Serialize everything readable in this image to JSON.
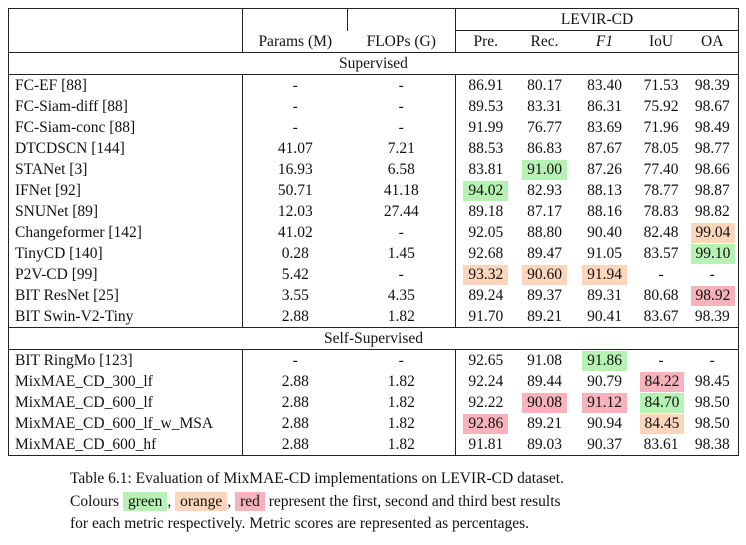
{
  "table": {
    "dataset": "LEVIR-CD",
    "columns": {
      "params": "Params (M)",
      "flops": "FLOPs (G)",
      "pre": "Pre.",
      "rec": "Rec.",
      "f1": "F1",
      "iou": "IoU",
      "oa": "OA"
    },
    "sections": [
      {
        "title": "Supervised",
        "rows": [
          {
            "model": "FC-EF [88]",
            "params": "-",
            "flops": "-",
            "pre": "86.91",
            "rec": "80.17",
            "f1": "83.40",
            "iou": "71.53",
            "oa": "98.39"
          },
          {
            "model": "FC-Siam-diff [88]",
            "params": "-",
            "flops": "-",
            "pre": "89.53",
            "rec": "83.31",
            "f1": "86.31",
            "iou": "75.92",
            "oa": "98.67"
          },
          {
            "model": "FC-Siam-conc [88]",
            "params": "-",
            "flops": "-",
            "pre": "91.99",
            "rec": "76.77",
            "f1": "83.69",
            "iou": "71.96",
            "oa": "98.49"
          },
          {
            "model": "DTCDSCN [144]",
            "params": "41.07",
            "flops": "7.21",
            "pre": "88.53",
            "rec": "86.83",
            "f1": "87.67",
            "iou": "78.05",
            "oa": "98.77"
          },
          {
            "model": "STANet [3]",
            "params": "16.93",
            "flops": "6.58",
            "pre": "83.81",
            "rec": "91.00",
            "f1": "87.26",
            "iou": "77.40",
            "oa": "98.66"
          },
          {
            "model": "IFNet [92]",
            "params": "50.71",
            "flops": "41.18",
            "pre": "94.02",
            "rec": "82.93",
            "f1": "88.13",
            "iou": "78.77",
            "oa": "98.87"
          },
          {
            "model": "SNUNet [89]",
            "params": "12.03",
            "flops": "27.44",
            "pre": "89.18",
            "rec": "87.17",
            "f1": "88.16",
            "iou": "78.83",
            "oa": "98.82"
          },
          {
            "model": "Changeformer [142]",
            "params": "41.02",
            "flops": "-",
            "pre": "92.05",
            "rec": "88.80",
            "f1": "90.40",
            "iou": "82.48",
            "oa": "99.04"
          },
          {
            "model": "TinyCD [140]",
            "params": "0.28",
            "flops": "1.45",
            "pre": "92.68",
            "rec": "89.47",
            "f1": "91.05",
            "iou": "83.57",
            "oa": "99.10"
          },
          {
            "model": "P2V-CD [99]",
            "params": "5.42",
            "flops": "-",
            "pre": "93.32",
            "rec": "90.60",
            "f1": "91.94",
            "iou": "-",
            "oa": "-"
          },
          {
            "model": "BIT ResNet [25]",
            "params": "3.55",
            "flops": "4.35",
            "pre": "89.24",
            "rec": "89.37",
            "f1": "89.31",
            "iou": "80.68",
            "oa": "98.92"
          },
          {
            "model": "BIT Swin-V2-Tiny",
            "params": "2.88",
            "flops": "1.82",
            "pre": "91.70",
            "rec": "89.21",
            "f1": "90.41",
            "iou": "83.67",
            "oa": "98.39"
          }
        ]
      },
      {
        "title": "Self-Supervised",
        "rows": [
          {
            "model": "BIT RingMo [123]",
            "params": "-",
            "flops": "-",
            "pre": "92.65",
            "rec": "91.08",
            "f1": "91.86",
            "iou": "-",
            "oa": "-"
          },
          {
            "model": "MixMAE_CD_300_lf",
            "params": "2.88",
            "flops": "1.82",
            "pre": "92.24",
            "rec": "89.44",
            "f1": "90.79",
            "iou": "84.22",
            "oa": "98.45"
          },
          {
            "model": "MixMAE_CD_600_lf",
            "params": "2.88",
            "flops": "1.82",
            "pre": "92.22",
            "rec": "90.08",
            "f1": "91.12",
            "iou": "84.70",
            "oa": "98.50"
          },
          {
            "model": "MixMAE_CD_600_lf_w_MSA",
            "params": "2.88",
            "flops": "1.82",
            "pre": "92.86",
            "rec": "89.21",
            "f1": "90.94",
            "iou": "84.45",
            "oa": "98.50"
          },
          {
            "model": "MixMAE_CD_600_hf",
            "params": "2.88",
            "flops": "1.82",
            "pre": "91.81",
            "rec": "89.03",
            "f1": "90.37",
            "iou": "83.61",
            "oa": "98.38"
          }
        ]
      }
    ],
    "highlights": [
      {
        "model": "STANet [3]",
        "col": "rec",
        "rank": "green"
      },
      {
        "model": "IFNet [92]",
        "col": "pre",
        "rank": "green"
      },
      {
        "model": "Changeformer [142]",
        "col": "oa",
        "rank": "orange"
      },
      {
        "model": "TinyCD [140]",
        "col": "oa",
        "rank": "green"
      },
      {
        "model": "P2V-CD [99]",
        "col": "pre",
        "rank": "orange"
      },
      {
        "model": "P2V-CD [99]",
        "col": "rec",
        "rank": "orange"
      },
      {
        "model": "P2V-CD [99]",
        "col": "f1",
        "rank": "orange"
      },
      {
        "model": "BIT ResNet [25]",
        "col": "oa",
        "rank": "red"
      },
      {
        "model": "BIT RingMo [123]",
        "col": "f1",
        "rank": "green"
      },
      {
        "model": "MixMAE_CD_300_lf",
        "col": "iou",
        "rank": "red"
      },
      {
        "model": "MixMAE_CD_600_lf",
        "col": "rec",
        "rank": "red"
      },
      {
        "model": "MixMAE_CD_600_lf",
        "col": "f1",
        "rank": "red"
      },
      {
        "model": "MixMAE_CD_600_lf",
        "col": "iou",
        "rank": "green"
      },
      {
        "model": "MixMAE_CD_600_lf_w_MSA",
        "col": "pre",
        "rank": "red"
      },
      {
        "model": "MixMAE_CD_600_lf_w_MSA",
        "col": "iou",
        "rank": "orange"
      }
    ]
  },
  "colors": {
    "green": "#b5f2b3",
    "orange": "#fbd6bc",
    "red": "#f6b3bc"
  },
  "caption": {
    "label": "Table 6.1:",
    "line1": "Evaluation of MixMAE-CD implementations on LEVIR-CD dataset.",
    "colours_word": "Colours",
    "green_word": "green",
    "orange_word": "orange",
    "red_word": "red",
    "rest_line2": "represent the first, second and third best results",
    "line3": "for each metric respectively. Metric scores are represented as percentages."
  }
}
